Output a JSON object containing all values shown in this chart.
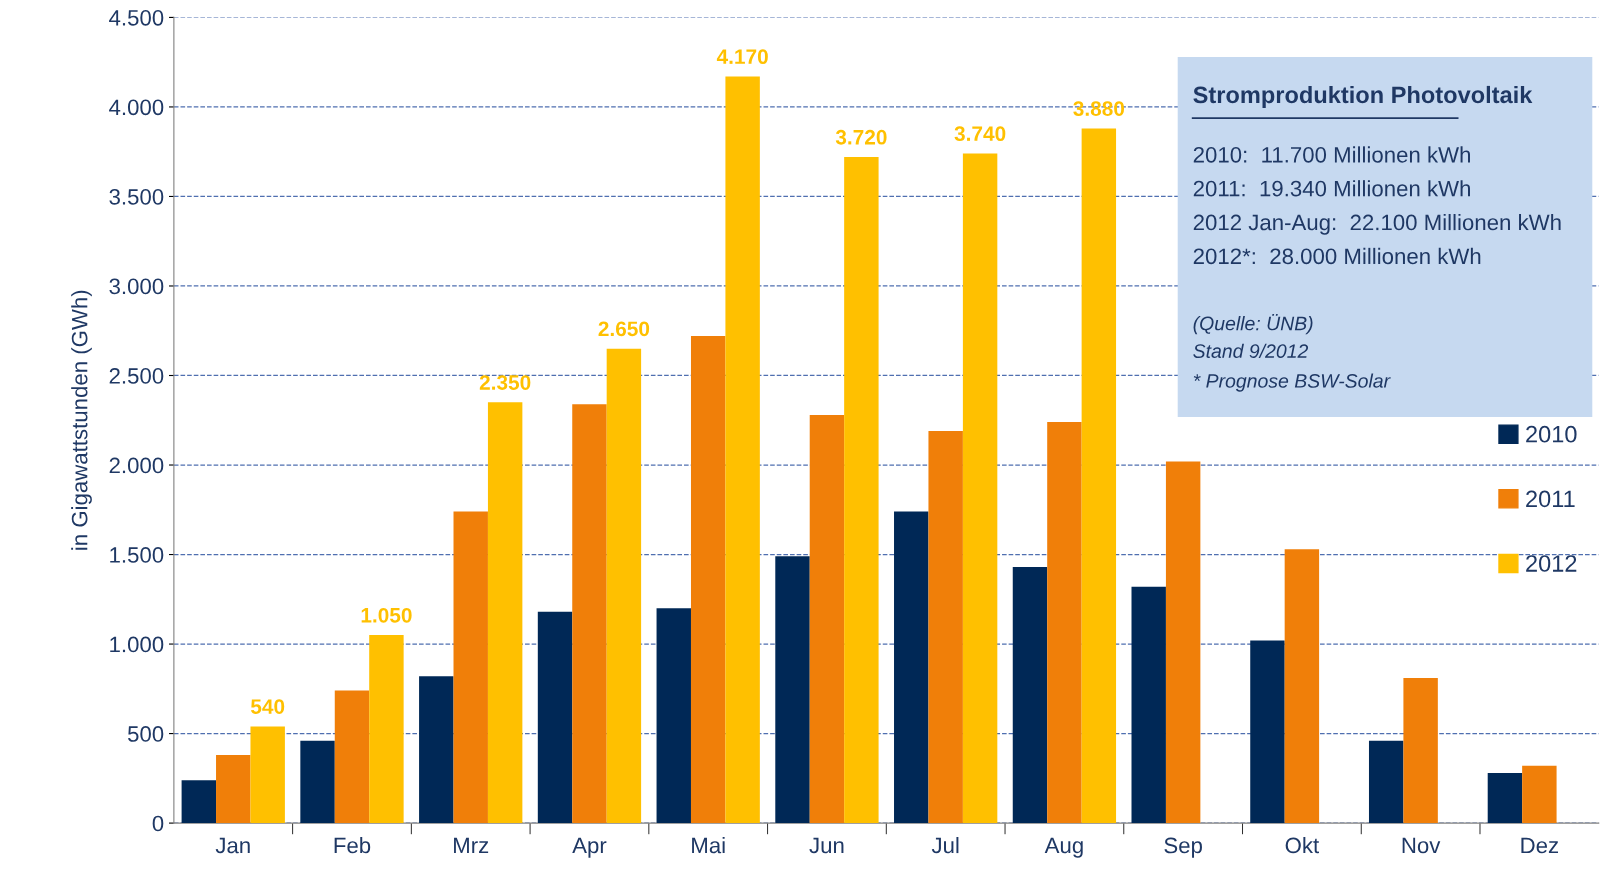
{
  "chart_data": {
    "type": "bar",
    "title": "Stromproduktion Photovoltaik",
    "ylabel": "in Gigawattstunden (GWh)",
    "categories": [
      "Jan",
      "Feb",
      "Mrz",
      "Apr",
      "Mai",
      "Jun",
      "Jul",
      "Aug",
      "Sep",
      "Okt",
      "Nov",
      "Dez"
    ],
    "series": [
      {
        "name": "2010",
        "color": "#002856",
        "values": [
          240,
          460,
          820,
          1180,
          1200,
          1490,
          1740,
          1430,
          1320,
          1020,
          460,
          280
        ]
      },
      {
        "name": "2011",
        "color": "#f07f09",
        "values": [
          380,
          740,
          1740,
          2340,
          2720,
          2280,
          2190,
          2240,
          2020,
          1530,
          810,
          320
        ]
      },
      {
        "name": "2012",
        "color": "#ffc000",
        "values": [
          540,
          1050,
          2350,
          2650,
          4170,
          3720,
          3740,
          3880,
          null,
          null,
          null,
          null
        ],
        "value_labels": [
          "540",
          "1.050",
          "2.350",
          "2.650",
          "4.170",
          "3.720",
          "3.740",
          "3.880",
          null,
          null,
          null,
          null
        ]
      }
    ],
    "ylim": [
      0,
      4500
    ],
    "yticks": [
      0,
      {
        "value": 500,
        "label": "500"
      },
      {
        "value": 1000,
        "label": "1.000"
      },
      {
        "value": 1500,
        "label": "1.500"
      },
      {
        "value": 2000,
        "label": "2.000"
      },
      {
        "value": 2500,
        "label": "2.500"
      },
      {
        "value": 3000,
        "label": "3.000"
      },
      {
        "value": 3500,
        "label": "3.500"
      },
      {
        "value": 4000,
        "label": "4.000"
      },
      {
        "value": 4500,
        "label": "4.500"
      }
    ],
    "grid": "y",
    "legend": "right",
    "annotations": [
      "2010:  11.700 Millionen kWh",
      "2011:  19.340 Millionen kWh",
      "2012 Jan-Aug:  22.100 Millionen kWh",
      "2012*:  28.000 Millionen kWh",
      "(Quelle: ÜNB)",
      "Stand 9/2012",
      "* Prognose BSW-Solar"
    ]
  }
}
